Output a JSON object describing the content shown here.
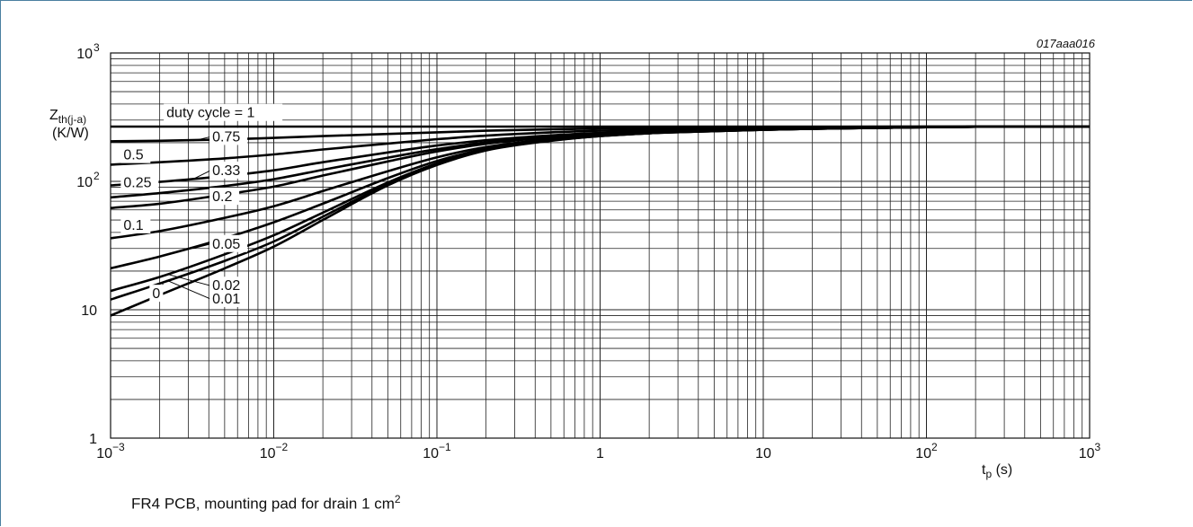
{
  "chart_data": {
    "type": "line",
    "code": "017aaa016",
    "ylabel": {
      "main": "Z",
      "sub": "th(j-a)",
      "unit": "(K/W)"
    },
    "xlabel": {
      "main": "t",
      "sub": "p",
      "unit": " (s)"
    },
    "xscale": "log",
    "yscale": "log",
    "xlim": [
      0.001,
      1000
    ],
    "ylim": [
      1,
      1000
    ],
    "grid": true,
    "x_ticks": [
      {
        "value": 0.001,
        "base": "10",
        "exp": "−3"
      },
      {
        "value": 0.01,
        "base": "10",
        "exp": "−2"
      },
      {
        "value": 0.1,
        "base": "10",
        "exp": "−1"
      },
      {
        "value": 1,
        "base": "1",
        "exp": ""
      },
      {
        "value": 10,
        "base": "10",
        "exp": ""
      },
      {
        "value": 100,
        "base": "10",
        "exp": "2"
      },
      {
        "value": 1000,
        "base": "10",
        "exp": "3"
      }
    ],
    "y_ticks": [
      {
        "value": 1,
        "base": "1",
        "exp": ""
      },
      {
        "value": 10,
        "base": "10",
        "exp": ""
      },
      {
        "value": 100,
        "base": "10",
        "exp": "2"
      },
      {
        "value": 1000,
        "base": "10",
        "exp": "3"
      }
    ],
    "x": [
      0.001,
      0.002,
      0.005,
      0.01,
      0.02,
      0.05,
      0.1,
      0.2,
      0.5,
      1,
      2,
      5,
      10,
      20,
      50,
      100,
      200,
      500,
      1000
    ],
    "series": [
      {
        "name": "duty cycle = 1",
        "values": [
          267,
          267,
          267,
          267,
          267,
          267,
          267,
          267,
          267,
          267,
          267,
          267,
          267,
          267,
          267,
          267,
          267,
          267,
          267
        ]
      },
      {
        "name": "0.75",
        "values": [
          205,
          207,
          212,
          218,
          225,
          234,
          241,
          248,
          254,
          258,
          261,
          263,
          264,
          265,
          266,
          267,
          267,
          267,
          267
        ]
      },
      {
        "name": "0.5",
        "values": [
          135,
          141,
          151,
          162,
          177,
          197,
          213,
          227,
          241,
          248,
          253,
          257,
          260,
          262,
          264,
          266,
          267,
          267,
          267
        ]
      },
      {
        "name": "0.33",
        "values": [
          93,
          99,
          110,
          122,
          141,
          168,
          190,
          209,
          228,
          238,
          245,
          251,
          255,
          259,
          262,
          265,
          266,
          267,
          267
        ]
      },
      {
        "name": "0.25",
        "values": [
          75,
          81,
          92,
          104,
          123,
          153,
          178,
          201,
          223,
          235,
          243,
          250,
          254,
          258,
          261,
          264,
          266,
          267,
          267
        ]
      },
      {
        "name": "0.2",
        "values": [
          62,
          67,
          79,
          91,
          111,
          143,
          171,
          196,
          220,
          233,
          242,
          249,
          254,
          258,
          261,
          264,
          266,
          267,
          267
        ]
      },
      {
        "name": "0.1",
        "values": [
          36,
          41,
          52,
          64,
          84,
          120,
          154,
          185,
          214,
          229,
          239,
          247,
          253,
          257,
          261,
          264,
          266,
          267,
          267
        ]
      },
      {
        "name": "0.05",
        "values": [
          21,
          26,
          36,
          48,
          67,
          106,
          144,
          179,
          211,
          227,
          238,
          247,
          252,
          257,
          261,
          264,
          266,
          267,
          267
        ]
      },
      {
        "name": "0.02",
        "values": [
          14,
          18,
          27,
          38,
          57,
          98,
          138,
          176,
          209,
          226,
          237,
          246,
          252,
          257,
          261,
          264,
          266,
          267,
          267
        ]
      },
      {
        "name": "0.01",
        "values": [
          12,
          16,
          24,
          34,
          53,
          95,
          136,
          175,
          208,
          225,
          237,
          246,
          252,
          257,
          261,
          264,
          266,
          267,
          267
        ]
      },
      {
        "name": "0",
        "values": [
          9,
          13,
          21,
          31,
          50,
          93,
          134,
          174,
          207,
          225,
          237,
          246,
          252,
          257,
          261,
          264,
          266,
          267,
          267
        ]
      }
    ],
    "labels": [
      {
        "text": "duty cycle = 1",
        "x": 0.0022,
        "y": 315,
        "leader": null
      },
      {
        "text": "0.75",
        "x": 0.0042,
        "y": 205,
        "leader": [
          0.0032,
          207
        ]
      },
      {
        "text": "0.5",
        "x": 0.0012,
        "y": 148,
        "leader": [
          0.0017,
          142
        ]
      },
      {
        "text": "0.33",
        "x": 0.0042,
        "y": 112,
        "leader": [
          0.0032,
          104
        ]
      },
      {
        "text": "0.25",
        "x": 0.0012,
        "y": 90,
        "leader": [
          0.0017,
          85
        ]
      },
      {
        "text": "0.2",
        "x": 0.0042,
        "y": 70,
        "leader": [
          0.0032,
          73
        ]
      },
      {
        "text": "0.1",
        "x": 0.0012,
        "y": 42,
        "leader": [
          0.0017,
          40
        ]
      },
      {
        "text": "0.05",
        "x": 0.0042,
        "y": 30,
        "leader": [
          0.0032,
          30
        ]
      },
      {
        "text": "0.02",
        "x": 0.0042,
        "y": 14.2,
        "leader": [
          0.0022,
          19
        ]
      },
      {
        "text": "0.01",
        "x": 0.0042,
        "y": 11.2,
        "leader": [
          0.0022,
          17
        ]
      },
      {
        "text": "0",
        "x": 0.0018,
        "y": 12.3,
        "leader": [
          0.0021,
          16
        ]
      }
    ]
  },
  "caption": {
    "text": "FR4 PCB, mounting pad for drain 1 cm",
    "sup": "2"
  }
}
